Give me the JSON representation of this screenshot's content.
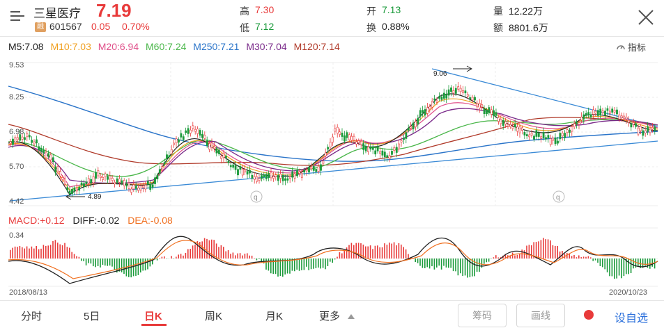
{
  "header": {
    "name": "三星医疗",
    "price": "7.19",
    "badge": "融",
    "code": "601567",
    "change": "0.05",
    "change_pct": "0.70%",
    "high_label": "高",
    "high_value": "7.30",
    "low_label": "低",
    "low_value": "7.12",
    "open_label": "开",
    "open_value": "7.13",
    "turnover_label": "换",
    "turnover_value": "0.88%",
    "volume_label": "量",
    "volume_value": "12.22万",
    "amount_label": "额",
    "amount_value": "8801.6万"
  },
  "ma_legend": {
    "m5": "M5:7.08",
    "m10": "M10:7.03",
    "m20": "M20:6.94",
    "m60": "M60:7.24",
    "m250": "M250:7.21",
    "m30": "M30:7.04",
    "m120": "M120:7.14",
    "colors": {
      "m5": "#222222",
      "m10": "#f0a020",
      "m20": "#e0508a",
      "m60": "#49b649",
      "m250": "#2a74c9",
      "m30": "#7a2a8a",
      "m120": "#b03a2a"
    }
  },
  "indicator_button": "指标",
  "price_axis": {
    "top": "9.53",
    "upper": "8.25",
    "mid": "6.98",
    "lower": "5.70",
    "bottom": "4.42"
  },
  "annotations": {
    "high_mark": "9.06",
    "low_mark": "4.89"
  },
  "macd": {
    "macd": "MACD:+0.12",
    "diff": "DIFF:-0.02",
    "dea": "DEA:-0.08",
    "axis_top": "0.34",
    "colors": {
      "up": "#e83a3a",
      "down": "#1a9a3a"
    }
  },
  "dates": {
    "start": "2018/08/13",
    "end": "2020/10/23"
  },
  "tabs": {
    "fenshi": "分时",
    "wuri": "5日",
    "rik": "日K",
    "zhouk": "周K",
    "yuek": "月K",
    "more": "更多"
  },
  "buttons": {
    "chips": "筹码",
    "draw": "画线",
    "add_watch": "设自选"
  }
}
